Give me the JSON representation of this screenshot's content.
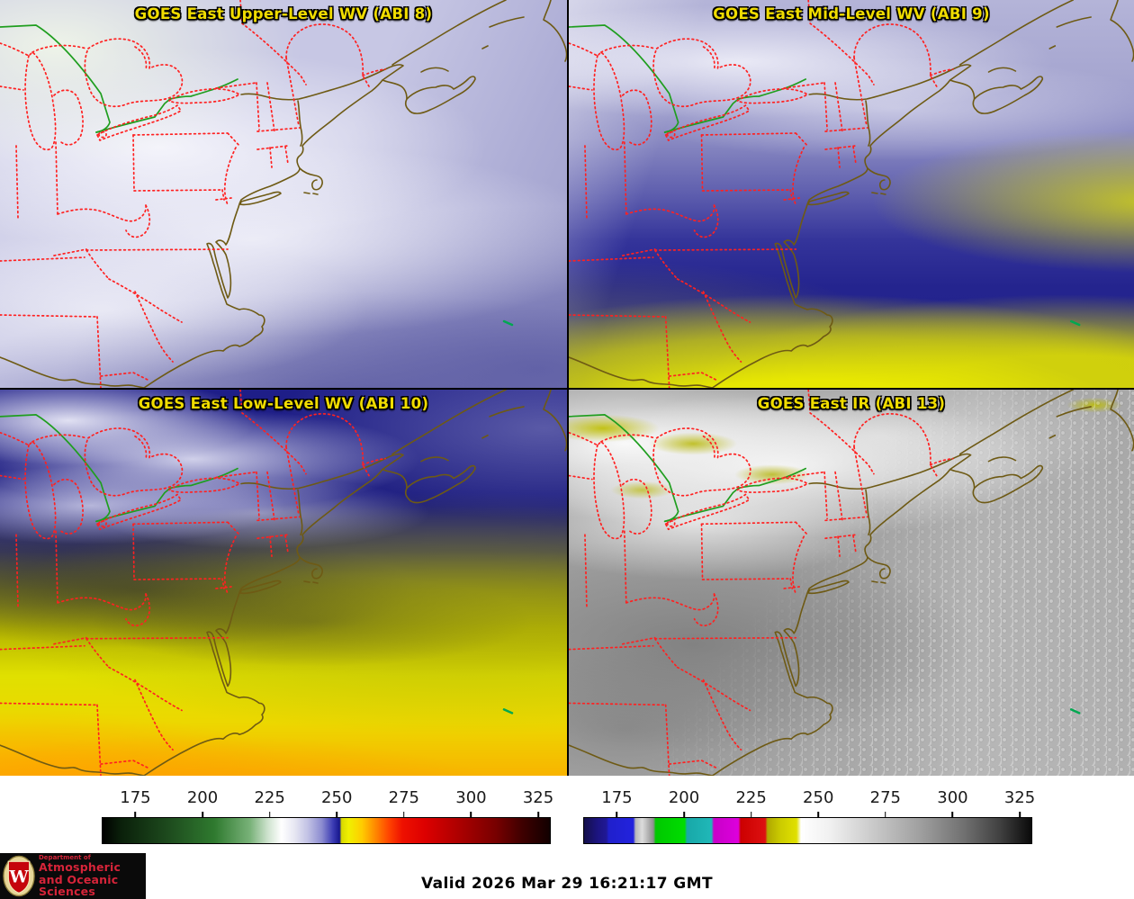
{
  "panels": [
    {
      "id": "abi8",
      "title": "GOES East Upper-Level WV (ABI 8)"
    },
    {
      "id": "abi9",
      "title": "GOES East Mid-Level WV (ABI 9)"
    },
    {
      "id": "abi10",
      "title": "GOES East Low-Level WV (ABI 10)"
    },
    {
      "id": "abi13",
      "title": "GOES East IR (ABI 13)"
    }
  ],
  "colorbars": {
    "wv": {
      "label": "water-vapor-temperature-scale",
      "ticks": [
        "175",
        "200",
        "225",
        "250",
        "275",
        "300",
        "325"
      ]
    },
    "ir": {
      "label": "infrared-temperature-scale",
      "ticks": [
        "175",
        "200",
        "225",
        "250",
        "275",
        "300",
        "325"
      ]
    }
  },
  "footer": {
    "valid_label": "Valid 2026 Mar 29 16:21:17 GMT"
  },
  "logo": {
    "dept": "Department of",
    "line1": "Atmospheric",
    "line2": "and Oceanic Sciences",
    "monogram": "W"
  },
  "colors": {
    "title_text": "#f0dc00",
    "state_border": "#ff2121",
    "coastline": "#6e5a14",
    "border_highlight_green": "#1f9e1f",
    "logo_red": "#d62439"
  }
}
